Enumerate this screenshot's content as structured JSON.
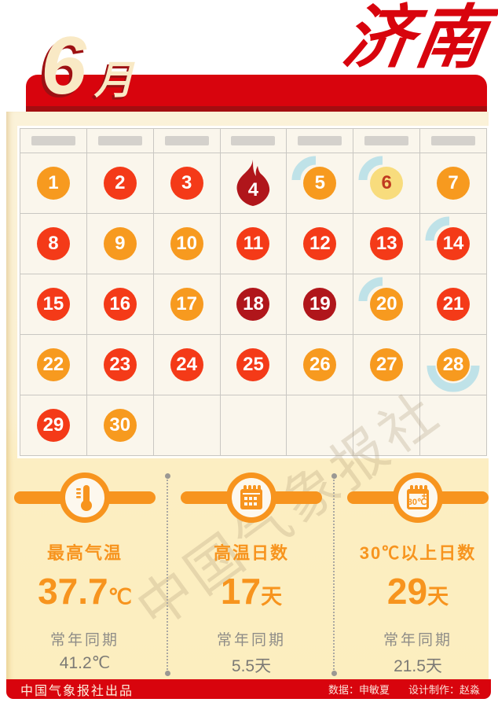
{
  "header": {
    "month": "6",
    "month_label": "月",
    "city": "济南"
  },
  "calendar": {
    "weekday_placeholder_count": 7,
    "days": [
      {
        "day": "1",
        "color": "orange"
      },
      {
        "day": "2",
        "color": "red"
      },
      {
        "day": "3",
        "color": "red"
      },
      {
        "day": "4",
        "color": "darkred",
        "flame": true
      },
      {
        "day": "5",
        "color": "orange",
        "arc": "top"
      },
      {
        "day": "6",
        "color": "yellow",
        "arc": "top"
      },
      {
        "day": "7",
        "color": "orange"
      },
      {
        "day": "8",
        "color": "red"
      },
      {
        "day": "9",
        "color": "orange"
      },
      {
        "day": "10",
        "color": "orange"
      },
      {
        "day": "11",
        "color": "red"
      },
      {
        "day": "12",
        "color": "red"
      },
      {
        "day": "13",
        "color": "red"
      },
      {
        "day": "14",
        "color": "red",
        "arc": "top"
      },
      {
        "day": "15",
        "color": "red"
      },
      {
        "day": "16",
        "color": "red"
      },
      {
        "day": "17",
        "color": "orange"
      },
      {
        "day": "18",
        "color": "darkred"
      },
      {
        "day": "19",
        "color": "darkred"
      },
      {
        "day": "20",
        "color": "orange",
        "arc": "top"
      },
      {
        "day": "21",
        "color": "red"
      },
      {
        "day": "22",
        "color": "orange"
      },
      {
        "day": "23",
        "color": "red"
      },
      {
        "day": "24",
        "color": "red"
      },
      {
        "day": "25",
        "color": "red"
      },
      {
        "day": "26",
        "color": "orange"
      },
      {
        "day": "27",
        "color": "orange"
      },
      {
        "day": "28",
        "color": "orange",
        "arc": "bottom"
      },
      {
        "day": "29",
        "color": "red"
      },
      {
        "day": "30",
        "color": "orange"
      }
    ],
    "trailing_empty_cells": 5
  },
  "stats": [
    {
      "icon": "thermometer-icon",
      "title": "最高气温",
      "value": "37.7",
      "unit": "℃",
      "normal_label": "常年同期",
      "normal_value": "41.2℃"
    },
    {
      "icon": "calendar-icon",
      "title": "高温日数",
      "value": "17",
      "unit": "天",
      "normal_label": "常年同期",
      "normal_value": "5.5天"
    },
    {
      "icon": "calendar-30-icon",
      "title": "30℃以上日数",
      "value": "29",
      "unit": "天",
      "normal_label": "常年同期",
      "normal_value": "21.5天",
      "icon_text": "30℃",
      "icon_plus": "+"
    }
  ],
  "watermark": "中国气象报社",
  "footer": {
    "left": "中国气象报社出品",
    "credit_data": "数据：申敏夏",
    "credit_design": "设计制作：赵淼"
  },
  "colors": {
    "banner_red": "#d8040d",
    "banner_shadow_red": "#a30d10",
    "accent_orange": "#f7941e",
    "day_orange": "#f79a1f",
    "day_red": "#f43a18",
    "day_darkred": "#b0161b",
    "day_yellow": "#f8dc7d",
    "rain_arc_blue": "#bfe2e8",
    "sheet_cream": "#fbf1d6",
    "stats_cream": "#fceec0"
  }
}
